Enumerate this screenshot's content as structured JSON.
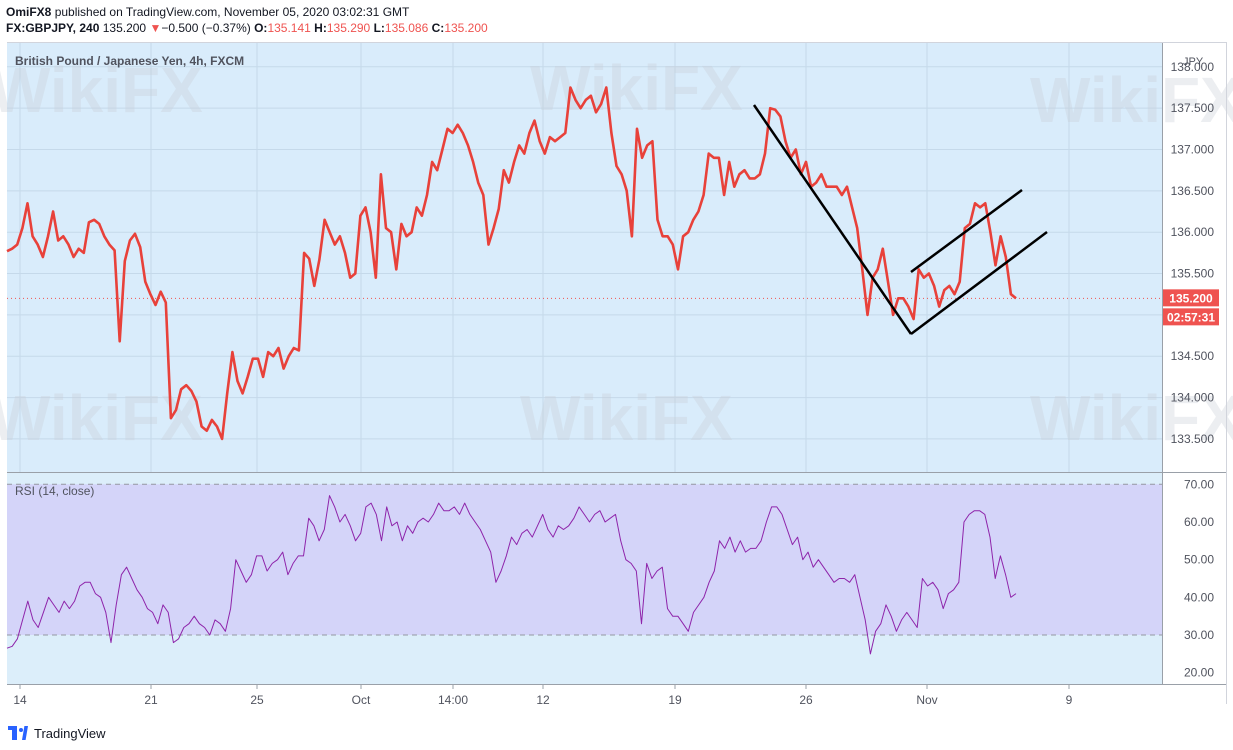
{
  "header": {
    "line1_user": "OmiFX8",
    "line1_rest": " published on TradingView.com, November 05, 2020 03:02:31 GMT",
    "symbol": "FX:GBPJPY, 240",
    "price": "135.200",
    "arrow": "▼",
    "change": "−0.500 (−0.37%)",
    "ohlc_o_label": "O:",
    "ohlc_o": "135.141",
    "ohlc_h_label": "H:",
    "ohlc_h": "135.290",
    "ohlc_l_label": "L:",
    "ohlc_l": "135.086",
    "ohlc_c_label": "C:",
    "ohlc_c": "135.200"
  },
  "price_pane": {
    "title": "British Pound / Japanese Yen, 4h, FXCM",
    "currency": "JPY",
    "last_price_label": "135.200",
    "countdown_label": "02:57:31"
  },
  "rsi_pane": {
    "title": "RSI (14, close)"
  },
  "watermark": "WikiFX",
  "footer": {
    "brand": "TradingView"
  },
  "colors": {
    "price_line": "#e8413a",
    "rsi_line": "#8e24aa",
    "price_bg": "#d9ecfb",
    "rsi_band": "#d4d4f9",
    "last_price_bg": "#ef5350",
    "trendline": "#000000"
  },
  "chart_data": [
    {
      "type": "line",
      "title": "British Pound / Japanese Yen, 4h, FXCM",
      "ylabel": "JPY",
      "ylim": [
        133.1,
        138.3
      ],
      "y_ticks": [
        "133.500",
        "134.000",
        "134.500",
        "135.000",
        "135.500",
        "136.000",
        "136.500",
        "137.000",
        "137.500",
        "138.000"
      ],
      "x_ticks": [
        "14",
        "21",
        "25",
        "Oct",
        "14:00",
        "12",
        "19",
        "26",
        "Nov",
        "9"
      ],
      "last_value": 135.2,
      "series": [
        {
          "values": [
            135.77,
            135.8,
            135.85,
            136.05,
            136.35,
            135.95,
            135.85,
            135.7,
            135.95,
            136.25,
            135.9,
            135.95,
            135.85,
            135.7,
            135.8,
            135.75,
            136.12,
            136.15,
            136.1,
            135.95,
            135.85,
            135.78,
            134.68,
            135.65,
            135.9,
            135.98,
            135.82,
            135.4,
            135.25,
            135.12,
            135.28,
            135.15,
            133.75,
            133.85,
            134.1,
            134.15,
            134.08,
            133.95,
            133.65,
            133.6,
            133.73,
            133.65,
            133.5,
            134.05,
            134.55,
            134.2,
            134.05,
            134.25,
            134.47,
            134.47,
            134.25,
            134.55,
            134.5,
            134.6,
            134.35,
            134.5,
            134.6,
            134.57,
            135.75,
            135.68,
            135.35,
            135.67,
            136.15,
            136.0,
            135.85,
            135.95,
            135.75,
            135.45,
            135.5,
            136.2,
            136.3,
            136.0,
            135.45,
            136.7,
            136.05,
            136.0,
            135.55,
            136.1,
            135.95,
            136.0,
            136.3,
            136.2,
            136.45,
            136.85,
            136.75,
            137.0,
            137.25,
            137.2,
            137.3,
            137.2,
            137.05,
            136.85,
            136.6,
            136.45,
            135.85,
            136.05,
            136.28,
            136.75,
            136.6,
            136.85,
            137.05,
            136.95,
            137.2,
            137.35,
            137.1,
            136.95,
            137.15,
            137.1,
            137.15,
            137.2,
            137.75,
            137.6,
            137.5,
            137.6,
            137.65,
            137.45,
            137.55,
            137.75,
            137.2,
            136.8,
            136.7,
            136.5,
            135.95,
            137.25,
            136.9,
            137.05,
            137.1,
            136.15,
            135.95,
            135.95,
            135.85,
            135.55,
            135.95,
            136.0,
            136.15,
            136.25,
            136.45,
            136.95,
            136.9,
            136.9,
            136.45,
            136.85,
            136.55,
            136.7,
            136.75,
            136.65,
            136.65,
            136.7,
            136.95,
            137.5,
            137.48,
            137.4,
            137.1,
            136.9,
            137.0,
            136.7,
            136.85,
            136.55,
            136.6,
            136.7,
            136.55,
            136.55,
            136.55,
            136.45,
            136.55,
            136.3,
            136.05,
            135.55,
            135.0,
            135.45,
            135.55,
            135.8,
            135.4,
            135.0,
            135.2,
            135.2,
            135.1,
            134.95,
            135.55,
            135.45,
            135.5,
            135.35,
            135.1,
            135.3,
            135.35,
            135.25,
            135.4,
            136.05,
            136.1,
            136.35,
            136.3,
            136.35,
            136.0,
            135.6,
            135.95,
            135.7,
            135.25,
            135.2
          ]
        }
      ]
    },
    {
      "type": "line",
      "title": "RSI (14, close)",
      "ylim": [
        17,
        73
      ],
      "y_ticks": [
        "20.00",
        "30.00",
        "40.00",
        "50.00",
        "60.00",
        "70.00"
      ],
      "bands": [
        30,
        70
      ],
      "series": [
        {
          "values": [
            26.5,
            27,
            29,
            34,
            39,
            34,
            32,
            36,
            40,
            38,
            36,
            39,
            37,
            39,
            43,
            44,
            44,
            41,
            40,
            36,
            28,
            38,
            46,
            48,
            45,
            42,
            40,
            37,
            36,
            33,
            38,
            36,
            28,
            29,
            32,
            33,
            35,
            33,
            32,
            30,
            34,
            33,
            31,
            37,
            50,
            47,
            44,
            46,
            51,
            51,
            47,
            49,
            50,
            52,
            46,
            49,
            51,
            51,
            61,
            59,
            55,
            58,
            67,
            64,
            60,
            62,
            59,
            55,
            57,
            64,
            65,
            62,
            55,
            64,
            59,
            60,
            55,
            59,
            57,
            60,
            61,
            60,
            62,
            65,
            63,
            63,
            64,
            62,
            65,
            62,
            60,
            58,
            55,
            52,
            44,
            47,
            51,
            56,
            54,
            57,
            58,
            56,
            59,
            62,
            58,
            56,
            59,
            58,
            59,
            61,
            64,
            62,
            60,
            62,
            63,
            60,
            61,
            62,
            55,
            50,
            49,
            47,
            33,
            49,
            45,
            47,
            48,
            37,
            35,
            35,
            33,
            31,
            36,
            38,
            40,
            44,
            47,
            55,
            53,
            56,
            52,
            55,
            52,
            53,
            53,
            55,
            60,
            64,
            64,
            62,
            58,
            54,
            56,
            50,
            52,
            48,
            50,
            48,
            46,
            44,
            45,
            45,
            44,
            46,
            40,
            34,
            25,
            31,
            33,
            38,
            35,
            31,
            34,
            36,
            34,
            32,
            45,
            43,
            44,
            42,
            37,
            41,
            42,
            44,
            60,
            62,
            63,
            63,
            62,
            56,
            45,
            51,
            46,
            40,
            41
          ]
        }
      ]
    }
  ]
}
